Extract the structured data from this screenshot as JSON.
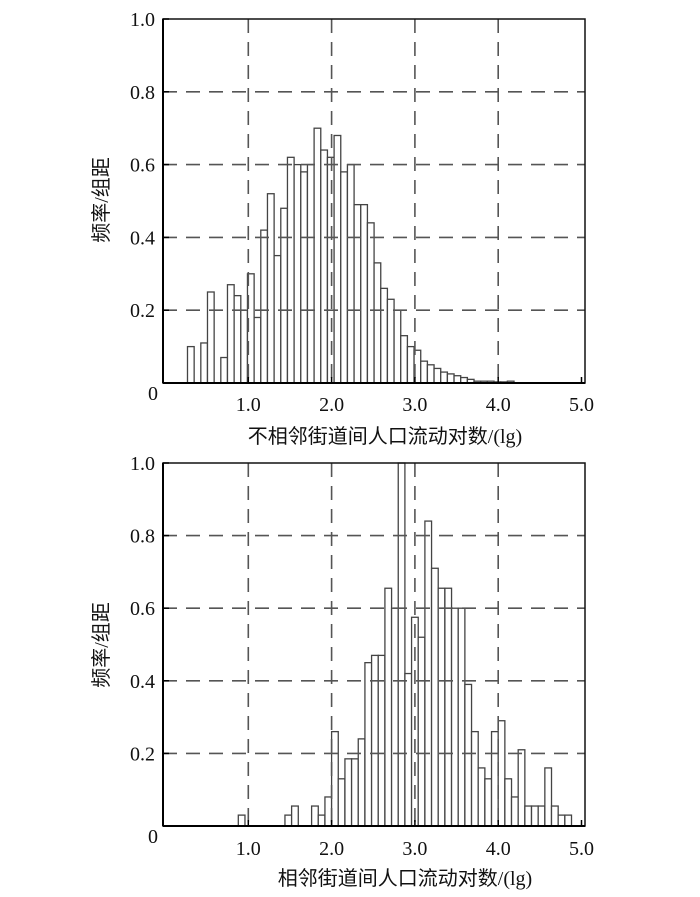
{
  "chart_data": [
    {
      "type": "bar",
      "subtype": "histogram",
      "xlabel": "不相邻街道间人口流动对数/(lg)",
      "ylabel": "频率/组距",
      "xlim": [
        0,
        5.0
      ],
      "ylim": [
        0,
        1.0
      ],
      "xticks": [
        "0",
        "1.0",
        "2.0",
        "3.0",
        "4.0",
        "5.0"
      ],
      "yticks": [
        "0.2",
        "0.4",
        "0.6",
        "0.8",
        "1.0"
      ],
      "grid": "dashed",
      "bin_start": 0.27,
      "bin_width": 0.08,
      "values": [
        0.1,
        0,
        0.11,
        0.25,
        0,
        0.07,
        0.27,
        0.24,
        0.2,
        0.3,
        0.18,
        0.42,
        0.52,
        0.35,
        0.48,
        0.62,
        0.6,
        0.58,
        0.6,
        0.7,
        0.64,
        0.62,
        0.68,
        0.58,
        0.6,
        0.49,
        0.49,
        0.44,
        0.33,
        0.26,
        0.23,
        0.2,
        0.13,
        0.1,
        0.09,
        0.06,
        0.05,
        0.04,
        0.03,
        0.025,
        0.02,
        0.015,
        0.01,
        0.005,
        0.005,
        0.005,
        0.003,
        0.003,
        0.005
      ]
    },
    {
      "type": "bar",
      "subtype": "histogram",
      "xlabel": "相邻街道间人口流动对数/(lg)",
      "ylabel": "频率/组距",
      "xlim": [
        0,
        5.0
      ],
      "ylim": [
        0,
        1.0
      ],
      "xticks": [
        "0",
        "1.0",
        "2.0",
        "3.0",
        "4.0",
        "5.0"
      ],
      "yticks": [
        "0.2",
        "0.4",
        "0.6",
        "0.8",
        "1.0"
      ],
      "grid": "dashed",
      "bin_start": 0.88,
      "bin_width": 0.08,
      "values": [
        0.03,
        0,
        0,
        0,
        0,
        0,
        0,
        0.03,
        0.055,
        0,
        0,
        0.055,
        0.03,
        0.08,
        0.26,
        0.13,
        0.185,
        0.185,
        0.24,
        0.45,
        0.47,
        0.47,
        0.655,
        0.6,
        1.0,
        0.42,
        0.575,
        0.52,
        0.84,
        0.71,
        0.655,
        0.655,
        0.6,
        0.6,
        0.39,
        0.26,
        0.16,
        0.13,
        0.26,
        0.29,
        0.13,
        0.08,
        0.21,
        0.055,
        0.055,
        0.055,
        0.16,
        0.055,
        0.03,
        0.03
      ]
    }
  ]
}
